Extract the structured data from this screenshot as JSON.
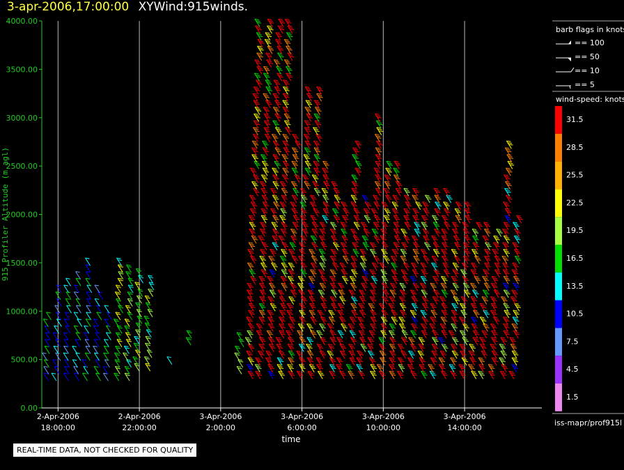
{
  "title": {
    "date": "3-apr-2006,17:00:00",
    "main": "XYWind:915winds."
  },
  "qa_note": "REAL-TIME DATA, NOT CHECKED FOR QUALITY",
  "source_label": "iss-mapr/prof915l",
  "colors": {
    "background": "#000000",
    "axis_y": "#22cc22",
    "axis_x": "#ffffff",
    "grid": "#bbbbbb"
  },
  "barb_legend": {
    "title": "barb flags in knots",
    "items": [
      {
        "label": "== 100"
      },
      {
        "label": "== 50"
      },
      {
        "label": "== 10"
      },
      {
        "label": "== 5"
      }
    ]
  },
  "speed_legend": {
    "title": "wind-speed: knots",
    "bins": [
      {
        "label": "31.5",
        "color": "#ff0000"
      },
      {
        "label": "28.5",
        "color": "#ff8000"
      },
      {
        "label": "25.5",
        "color": "#ffb000"
      },
      {
        "label": "22.5",
        "color": "#ffff00"
      },
      {
        "label": "19.5",
        "color": "#aaff44"
      },
      {
        "label": "16.5",
        "color": "#00dd00"
      },
      {
        "label": "13.5",
        "color": "#00ffff"
      },
      {
        "label": "10.5",
        "color": "#0000ff"
      },
      {
        "label": "7.5",
        "color": "#6699ff"
      },
      {
        "label": "4.5",
        "color": "#9933ff"
      },
      {
        "label": "1.5",
        "color": "#ee88ee"
      }
    ]
  },
  "chart_data": {
    "type": "scatter",
    "title": "XYWind:915winds.",
    "xlabel": "time",
    "ylabel": "915 Profiler Altitude (m agl)",
    "ylim": [
      0,
      4000
    ],
    "xlim_hours_from_apr2_1800": [
      -0.8,
      23.8
    ],
    "grid": "vertical",
    "y_ticks": [
      "0.00",
      "500.00",
      "1000.00",
      "1500.00",
      "2000.00",
      "2500.00",
      "3000.00",
      "3500.00",
      "4000.00"
    ],
    "x_ticks": [
      {
        "line1": "2-Apr-2006",
        "line2": "18:00:00"
      },
      {
        "line1": "2-Apr-2006",
        "line2": "22:00:00"
      },
      {
        "line1": "3-Apr-2006",
        "line2": "2:00:00"
      },
      {
        "line1": "3-Apr-2006",
        "line2": "6:00:00"
      },
      {
        "line1": "3-Apr-2006",
        "line2": "10:00:00"
      },
      {
        "line1": "3-Apr-2006",
        "line2": "14:00:00"
      }
    ],
    "profiles": [
      {
        "time": "2-Apr 17:30",
        "tmin": 280,
        "tmax": 950,
        "speed": "low",
        "dir": 240
      },
      {
        "time": "2-Apr 18:00",
        "tmin": 280,
        "tmax": 1250,
        "speed": "low",
        "dir": 240
      },
      {
        "time": "2-Apr 18:30",
        "tmin": 280,
        "tmax": 1280,
        "speed": "low",
        "dir": 240
      },
      {
        "time": "2-Apr 19:00",
        "tmin": 280,
        "tmax": 1380,
        "speed": "low",
        "dir": 240
      },
      {
        "time": "2-Apr 19:30",
        "tmin": 280,
        "tmax": 1480,
        "speed": "low",
        "dir": 240
      },
      {
        "time": "2-Apr 20:00",
        "tmin": 280,
        "tmax": 1200,
        "speed": "low",
        "dir": 240
      },
      {
        "time": "2-Apr 20:30",
        "tmin": 280,
        "tmax": 1000,
        "speed": "low",
        "dir": 240
      },
      {
        "time": "2-Apr 21:00",
        "tmin": 280,
        "tmax": 1480,
        "speed": "mid",
        "dir": 240
      },
      {
        "time": "2-Apr 21:30",
        "tmin": 280,
        "tmax": 1450,
        "speed": "mid",
        "dir": 240
      },
      {
        "time": "2-Apr 22:00",
        "tmin": 380,
        "tmax": 1380,
        "speed": "mid",
        "dir": 240
      },
      {
        "time": "2-Apr 22:30",
        "tmin": 380,
        "tmax": 1300,
        "speed": "mid",
        "dir": 240
      },
      {
        "time": "2-Apr 23:30",
        "tmin": 450,
        "tmax": 500,
        "speed": "low",
        "dir": 240
      },
      {
        "time": "3-Apr 00:30",
        "tmin": 650,
        "tmax": 750,
        "speed": "mid",
        "dir": 240
      },
      {
        "time": "3-Apr 03:00",
        "tmin": 350,
        "tmax": 700,
        "speed": "mid",
        "dir": 240
      },
      {
        "time": "3-Apr 03:30",
        "tmin": 300,
        "tmax": 3950,
        "speed": "high",
        "dir": 240
      },
      {
        "time": "3-Apr 04:00",
        "tmin": 300,
        "tmax": 3950,
        "speed": "high",
        "dir": 240
      },
      {
        "time": "3-Apr 04:30",
        "tmin": 300,
        "tmax": 3950,
        "speed": "high",
        "dir": 240
      },
      {
        "time": "3-Apr 05:00",
        "tmin": 300,
        "tmax": 3950,
        "speed": "high",
        "dir": 240
      },
      {
        "time": "3-Apr 05:30",
        "tmin": 300,
        "tmax": 2800,
        "speed": "high",
        "dir": 240
      },
      {
        "time": "3-Apr 06:00",
        "tmin": 300,
        "tmax": 3250,
        "speed": "high",
        "dir": 240
      },
      {
        "time": "3-Apr 06:30",
        "tmin": 300,
        "tmax": 3250,
        "speed": "high",
        "dir": 240
      },
      {
        "time": "3-Apr 07:00",
        "tmin": 300,
        "tmax": 2500,
        "speed": "high",
        "dir": 240
      },
      {
        "time": "3-Apr 07:30",
        "tmin": 300,
        "tmax": 2300,
        "speed": "high",
        "dir": 240
      },
      {
        "time": "3-Apr 08:00",
        "tmin": 300,
        "tmax": 2100,
        "speed": "high",
        "dir": 240
      },
      {
        "time": "3-Apr 08:30",
        "tmin": 300,
        "tmax": 2700,
        "speed": "high",
        "dir": 240
      },
      {
        "time": "3-Apr 09:00",
        "tmin": 300,
        "tmax": 2150,
        "speed": "high",
        "dir": 240
      },
      {
        "time": "3-Apr 09:30",
        "tmin": 300,
        "tmax": 3000,
        "speed": "high",
        "dir": 240
      },
      {
        "time": "3-Apr 10:00",
        "tmin": 300,
        "tmax": 2500,
        "speed": "high",
        "dir": 240
      },
      {
        "time": "3-Apr 10:30",
        "tmin": 300,
        "tmax": 2500,
        "speed": "high",
        "dir": 240
      },
      {
        "time": "3-Apr 11:00",
        "tmin": 300,
        "tmax": 2200,
        "speed": "high",
        "dir": 240
      },
      {
        "time": "3-Apr 11:30",
        "tmin": 300,
        "tmax": 2200,
        "speed": "high",
        "dir": 240
      },
      {
        "time": "3-Apr 12:00",
        "tmin": 300,
        "tmax": 2150,
        "speed": "high",
        "dir": 240
      },
      {
        "time": "3-Apr 12:30",
        "tmin": 300,
        "tmax": 2200,
        "speed": "high",
        "dir": 240
      },
      {
        "time": "3-Apr 13:00",
        "tmin": 300,
        "tmax": 2250,
        "speed": "high",
        "dir": 240
      },
      {
        "time": "3-Apr 13:30",
        "tmin": 300,
        "tmax": 2100,
        "speed": "high",
        "dir": 240
      },
      {
        "time": "3-Apr 14:00",
        "tmin": 300,
        "tmax": 2050,
        "speed": "high",
        "dir": 240
      },
      {
        "time": "3-Apr 14:30",
        "tmin": 300,
        "tmax": 1900,
        "speed": "high",
        "dir": 240
      },
      {
        "time": "3-Apr 15:00",
        "tmin": 300,
        "tmax": 1900,
        "speed": "high",
        "dir": 240
      },
      {
        "time": "3-Apr 15:30",
        "tmin": 300,
        "tmax": 1800,
        "speed": "high",
        "dir": 240
      },
      {
        "time": "3-Apr 16:00",
        "tmin": 300,
        "tmax": 2700,
        "speed": "high",
        "dir": 240
      },
      {
        "time": "3-Apr 16:30",
        "tmin": 300,
        "tmax": 1950,
        "speed": "high",
        "dir": 240
      }
    ]
  }
}
